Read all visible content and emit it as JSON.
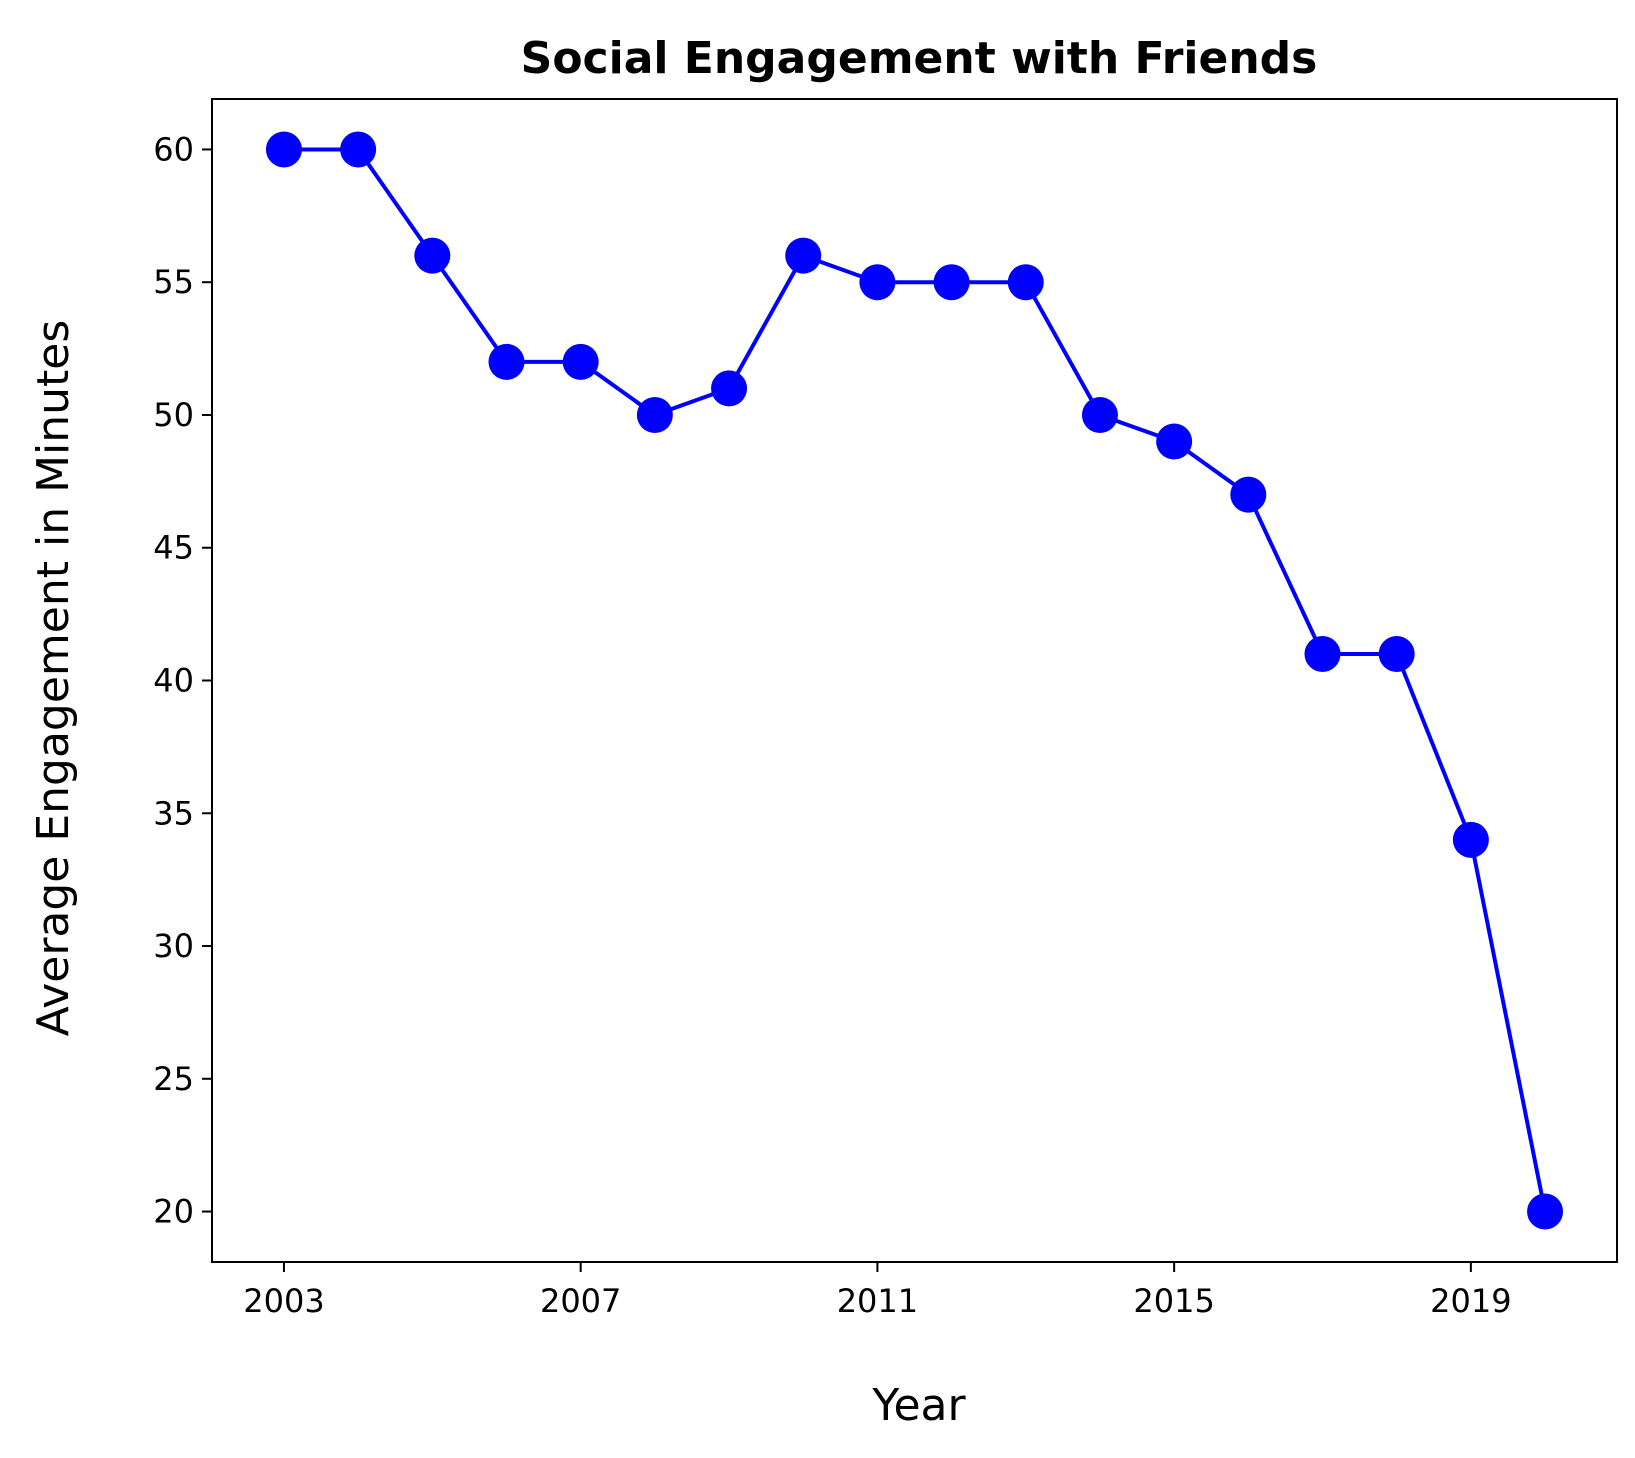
{
  "chart_data": {
    "type": "line",
    "title": "Social Engagement with Friends",
    "xlabel": "Year",
    "ylabel": "Average Engagement in Minutes",
    "x": [
      2003,
      2004,
      2005,
      2006,
      2007,
      2008,
      2009,
      2010,
      2011,
      2012,
      2013,
      2014,
      2015,
      2016,
      2017,
      2018,
      2019,
      2020
    ],
    "series": [
      {
        "values": [
          60,
          60,
          56,
          52,
          52,
          50,
          51,
          56,
          55,
          55,
          55,
          50,
          49,
          47,
          41,
          41,
          34,
          20
        ],
        "color": "#0000ff",
        "marker": "circle"
      }
    ],
    "xticks": [
      2003,
      2007,
      2011,
      2015,
      2019
    ],
    "yticks": [
      20,
      25,
      30,
      35,
      40,
      45,
      50,
      55,
      60
    ],
    "xlim": [
      2002.03,
      2020.97
    ],
    "ylim": [
      18.1,
      61.9
    ],
    "grid": false,
    "legend": "none"
  }
}
